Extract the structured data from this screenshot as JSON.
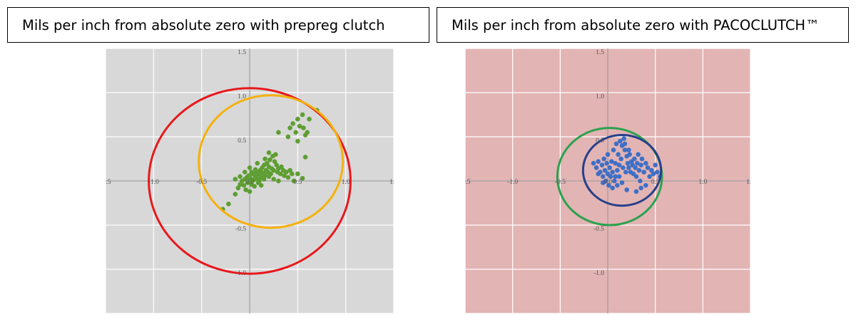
{
  "charts": [
    {
      "id": "left",
      "title": "Mils per inch from absolute zero with prepreg clutch",
      "background": "#d8d8d8",
      "point_color": "#5e9e32"
    },
    {
      "id": "right",
      "title": "Mils per inch from absolute zero with PACOCLUTCH™",
      "background": "#e3b4b4",
      "point_color": "#3f6fc5"
    }
  ],
  "chart_data": [
    {
      "type": "scatter",
      "title": "Mils per inch from absolute zero with prepreg clutch",
      "xlim": [
        -1.5,
        1.5
      ],
      "ylim": [
        -1.5,
        1.5
      ],
      "x_ticks": [
        "-1.5",
        "-1.0",
        "-0.5",
        "0.0",
        "0.5",
        "1.0",
        "1.5"
      ],
      "y_ticks": [
        "1.5",
        "1.0",
        "0.5",
        "0.0",
        "-0.5",
        "-1.0",
        "-1.5"
      ],
      "grid": true,
      "series": [
        {
          "values": [
            [
              -0.28,
              -0.32
            ],
            [
              -0.22,
              -0.26
            ],
            [
              -0.15,
              -0.15
            ],
            [
              -0.12,
              -0.08
            ],
            [
              -0.1,
              -0.04
            ],
            [
              -0.08,
              0.0
            ],
            [
              -0.06,
              -0.05
            ],
            [
              -0.05,
              0.02
            ],
            [
              -0.04,
              -0.1
            ],
            [
              -0.03,
              0.04
            ],
            [
              -0.02,
              -0.02
            ],
            [
              -0.01,
              0.06
            ],
            [
              0.0,
              0.0
            ],
            [
              0.0,
              -0.12
            ],
            [
              0.01,
              0.03
            ],
            [
              0.02,
              -0.04
            ],
            [
              0.03,
              0.08
            ],
            [
              0.04,
              0.01
            ],
            [
              0.05,
              -0.06
            ],
            [
              0.06,
              0.05
            ],
            [
              0.07,
              0.1
            ],
            [
              0.08,
              0.02
            ],
            [
              0.09,
              -0.02
            ],
            [
              0.1,
              0.07
            ],
            [
              0.11,
              0.12
            ],
            [
              0.12,
              0.04
            ],
            [
              0.13,
              0.15
            ],
            [
              0.14,
              0.09
            ],
            [
              0.15,
              0.18
            ],
            [
              0.16,
              0.06
            ],
            [
              0.17,
              0.12
            ],
            [
              0.18,
              0.2
            ],
            [
              0.19,
              0.1
            ],
            [
              0.2,
              0.16
            ],
            [
              0.21,
              0.24
            ],
            [
              0.22,
              0.08
            ],
            [
              0.23,
              0.14
            ],
            [
              0.24,
              0.28
            ],
            [
              0.25,
              0.12
            ],
            [
              0.26,
              0.22
            ],
            [
              0.27,
              0.3
            ],
            [
              0.28,
              0.18
            ],
            [
              0.29,
              0.1
            ],
            [
              0.3,
              0.14
            ],
            [
              0.32,
              0.08
            ],
            [
              0.33,
              0.16
            ],
            [
              0.35,
              0.12
            ],
            [
              0.36,
              0.06
            ],
            [
              0.38,
              0.1
            ],
            [
              0.4,
              0.04
            ],
            [
              0.42,
              0.12
            ],
            [
              0.44,
              0.08
            ],
            [
              0.46,
              0.0
            ],
            [
              0.5,
              0.08
            ],
            [
              0.55,
              0.03
            ],
            [
              0.3,
              0.55
            ],
            [
              0.4,
              0.5
            ],
            [
              0.42,
              0.6
            ],
            [
              0.45,
              0.65
            ],
            [
              0.48,
              0.55
            ],
            [
              0.5,
              0.7
            ],
            [
              0.52,
              0.62
            ],
            [
              0.55,
              0.75
            ],
            [
              0.56,
              0.6
            ],
            [
              0.58,
              0.52
            ],
            [
              0.6,
              0.55
            ],
            [
              0.62,
              0.7
            ],
            [
              0.5,
              0.45
            ],
            [
              0.58,
              0.27
            ],
            [
              0.7,
              0.8
            ],
            [
              -0.15,
              0.02
            ],
            [
              -0.1,
              0.05
            ],
            [
              0.02,
              0.1
            ],
            [
              0.06,
              0.13
            ],
            [
              0.1,
              0.0
            ],
            [
              0.15,
              0.02
            ],
            [
              0.2,
              0.05
            ],
            [
              0.25,
              0.02
            ],
            [
              0.3,
              0.0
            ],
            [
              0.12,
              -0.05
            ],
            [
              -0.05,
              0.1
            ],
            [
              0.0,
              0.15
            ],
            [
              0.08,
              0.2
            ],
            [
              0.16,
              0.25
            ],
            [
              0.2,
              0.32
            ]
          ]
        }
      ],
      "circles": [
        {
          "color": "#e8171c",
          "cx": 0.0,
          "cy": 0.0,
          "rx": 1.05,
          "ry": 1.05
        },
        {
          "color": "#f4b10c",
          "cx": 0.22,
          "cy": 0.22,
          "rx": 0.75,
          "ry": 0.75
        }
      ]
    },
    {
      "type": "scatter",
      "title": "Mils per inch from absolute zero with PACOCLUTCH™",
      "xlim": [
        -1.5,
        1.5
      ],
      "ylim": [
        -1.5,
        1.5
      ],
      "x_ticks": [
        "-1.5",
        "-1.0",
        "-0.5",
        "0.0",
        "0.5",
        "1.0",
        "1.5"
      ],
      "y_ticks": [
        "1.5",
        "1.0",
        "0.5",
        "0.0",
        "-0.5",
        "-1.0",
        "-1.5"
      ],
      "grid": true,
      "series": [
        {
          "values": [
            [
              -0.15,
              0.2
            ],
            [
              -0.12,
              0.15
            ],
            [
              -0.1,
              0.22
            ],
            [
              -0.08,
              0.1
            ],
            [
              -0.06,
              0.18
            ],
            [
              -0.05,
              0.05
            ],
            [
              -0.04,
              0.25
            ],
            [
              -0.03,
              0.12
            ],
            [
              -0.02,
              0.0
            ],
            [
              -0.01,
              0.2
            ],
            [
              0.0,
              0.08
            ],
            [
              0.0,
              0.3
            ],
            [
              0.01,
              -0.05
            ],
            [
              0.02,
              0.15
            ],
            [
              0.03,
              0.05
            ],
            [
              0.04,
              0.22
            ],
            [
              0.05,
              0.1
            ],
            [
              0.06,
              0.35
            ],
            [
              0.07,
              0.0
            ],
            [
              0.08,
              0.2
            ],
            [
              0.09,
              0.42
            ],
            [
              0.1,
              0.12
            ],
            [
              0.11,
              0.3
            ],
            [
              0.12,
              0.05
            ],
            [
              0.13,
              0.45
            ],
            [
              0.14,
              0.25
            ],
            [
              0.15,
              0.4
            ],
            [
              0.16,
              0.15
            ],
            [
              0.17,
              0.48
            ],
            [
              0.18,
              0.35
            ],
            [
              0.19,
              0.1
            ],
            [
              0.2,
              0.28
            ],
            [
              0.21,
              0.2
            ],
            [
              0.22,
              0.15
            ],
            [
              0.23,
              0.3
            ],
            [
              0.24,
              0.1
            ],
            [
              0.25,
              0.22
            ],
            [
              0.26,
              0.18
            ],
            [
              0.27,
              0.08
            ],
            [
              0.28,
              0.25
            ],
            [
              0.29,
              0.15
            ],
            [
              0.3,
              0.05
            ],
            [
              0.31,
              0.2
            ],
            [
              0.32,
              0.3
            ],
            [
              0.33,
              0.12
            ],
            [
              0.34,
              0.0
            ],
            [
              0.35,
              0.18
            ],
            [
              0.36,
              0.25
            ],
            [
              0.38,
              0.1
            ],
            [
              0.4,
              0.2
            ],
            [
              0.42,
              0.15
            ],
            [
              0.44,
              0.05
            ],
            [
              0.46,
              0.12
            ],
            [
              0.48,
              0.08
            ],
            [
              0.5,
              0.18
            ],
            [
              0.52,
              0.1
            ],
            [
              0.55,
              0.05
            ],
            [
              0.4,
              -0.05
            ],
            [
              0.35,
              -0.08
            ],
            [
              0.3,
              -0.12
            ],
            [
              -0.05,
              -0.02
            ],
            [
              0.05,
              -0.08
            ],
            [
              0.1,
              -0.05
            ],
            [
              0.15,
              -0.02
            ],
            [
              0.2,
              -0.1
            ],
            [
              0.08,
              0.05
            ],
            [
              -0.1,
              0.08
            ],
            [
              0.12,
              0.18
            ],
            [
              0.22,
              0.35
            ],
            [
              0.18,
              0.42
            ]
          ]
        }
      ],
      "circles": [
        {
          "color": "#2aa24e",
          "cx": 0.02,
          "cy": 0.05,
          "rx": 0.55,
          "ry": 0.55
        },
        {
          "color": "#26408a",
          "cx": 0.15,
          "cy": 0.12,
          "rx": 0.41,
          "ry": 0.4
        }
      ]
    }
  ]
}
